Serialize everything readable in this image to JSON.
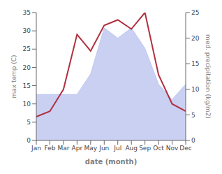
{
  "chart_data": {
    "type": "line",
    "xlabel": "date (month)",
    "ylabel": "max temp (C)",
    "y2label": "med. precipitation (kg/m2)",
    "categories": [
      "Jan",
      "Feb",
      "Mar",
      "Apr",
      "May",
      "Jun",
      "Jul",
      "Aug",
      "Sep",
      "Oct",
      "Nov",
      "Dec"
    ],
    "series": [
      {
        "type": "area",
        "axis": "y2",
        "color": "#c0c8f0",
        "values": [
          9,
          9,
          9,
          9,
          13,
          22,
          20,
          22,
          18,
          11,
          8,
          11
        ]
      },
      {
        "type": "line",
        "color": "#b03040",
        "values": [
          6.5,
          8.0,
          14.0,
          29.0,
          24.5,
          31.5,
          33.0,
          30.5,
          35.0,
          18.0,
          10.0,
          8.0
        ]
      }
    ],
    "ylim": [
      0,
      35
    ],
    "yticks": [
      0,
      5,
      10,
      15,
      20,
      25,
      30,
      35
    ],
    "y2lim": [
      0,
      25
    ],
    "y2ticks": [
      0,
      5,
      10,
      15,
      20,
      25
    ],
    "grid": false
  }
}
